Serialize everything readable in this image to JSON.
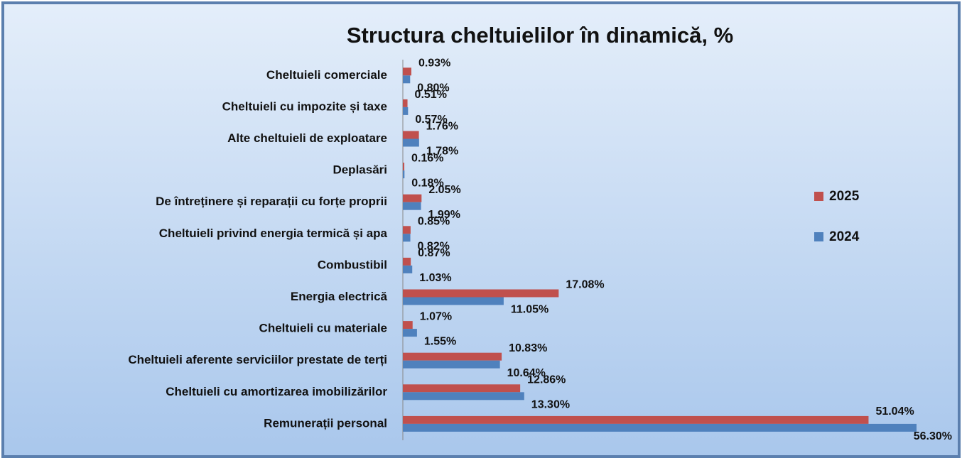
{
  "chart_data": {
    "type": "bar",
    "orientation": "horizontal",
    "title": "Structura cheltuielilor în dinamică, %",
    "categories": [
      "Cheltuieli comerciale",
      "Cheltuieli cu impozite și taxe",
      "Alte cheltuieli de exploatare",
      "Deplasări",
      "De întreținere și reparații cu forțe proprii",
      "Cheltuieli privind energia termică și apa",
      "Combustibil",
      "Energia electrică",
      "Cheltuieli cu materiale",
      "Cheltuieli aferente serviciilor prestate de terți",
      "Cheltuieli cu amortizarea imobilizărilor",
      "Remunerații personal"
    ],
    "series": [
      {
        "name": "2025",
        "color": "#c0504d",
        "values": [
          0.93,
          0.51,
          1.76,
          0.16,
          2.05,
          0.85,
          0.87,
          17.08,
          1.07,
          10.83,
          12.86,
          51.04
        ],
        "value_labels": [
          "0.93%",
          "0.51%",
          "1.76%",
          "0.16%",
          "2.05%",
          "0.85%",
          "0.87%",
          "17.08%",
          "1.07%",
          "10.83%",
          "12.86%",
          "51.04%"
        ]
      },
      {
        "name": "2024",
        "color": "#4f81bd",
        "values": [
          0.8,
          0.57,
          1.78,
          0.18,
          1.99,
          0.82,
          1.03,
          11.05,
          1.55,
          10.64,
          13.3,
          56.3
        ],
        "value_labels": [
          "0.80%",
          "0.57%",
          "1.78%",
          "0.18%",
          "1.99%",
          "0.82%",
          "1.03%",
          "11.05%",
          "1.55%",
          "10.64%",
          "13.30%",
          "56.30%"
        ]
      }
    ],
    "legend": "right"
  }
}
